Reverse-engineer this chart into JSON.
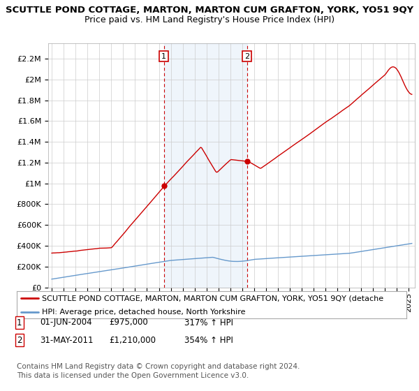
{
  "title": "SCUTTLE POND COTTAGE, MARTON, MARTON CUM GRAFTON, YORK, YO51 9QY",
  "subtitle": "Price paid vs. HM Land Registry's House Price Index (HPI)",
  "ylabel_ticks": [
    "£0",
    "£200K",
    "£400K",
    "£600K",
    "£800K",
    "£1M",
    "£1.2M",
    "£1.4M",
    "£1.6M",
    "£1.8M",
    "£2M",
    "£2.2M"
  ],
  "ytick_values": [
    0,
    200000,
    400000,
    600000,
    800000,
    1000000,
    1200000,
    1400000,
    1600000,
    1800000,
    2000000,
    2200000
  ],
  "ylim": [
    0,
    2350000
  ],
  "xlim_start": 1994.7,
  "xlim_end": 2025.5,
  "sale1_date": 2004.42,
  "sale1_price": 975000,
  "sale1_label": "1",
  "sale2_date": 2011.41,
  "sale2_price": 1210000,
  "sale2_label": "2",
  "legend_line1": "SCUTTLE POND COTTAGE, MARTON, MARTON CUM GRAFTON, YORK, YO51 9QY (detache",
  "legend_line2": "HPI: Average price, detached house, North Yorkshire",
  "red_color": "#cc0000",
  "blue_color": "#6699cc",
  "bg_color": "#ffffff",
  "plot_bg_color": "#ffffff",
  "grid_color": "#cccccc",
  "shade_color": "#ddeeff",
  "title_fontsize": 9.5,
  "subtitle_fontsize": 9,
  "tick_fontsize": 8,
  "legend_fontsize": 8,
  "table_fontsize": 8.5,
  "footnote_fontsize": 7.5
}
